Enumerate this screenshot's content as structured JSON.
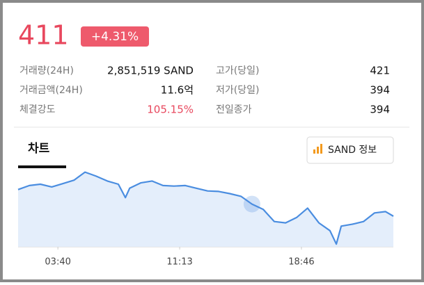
{
  "price": "411",
  "change": "+4.31%",
  "stats": [
    {
      "label": "거래량(24H)",
      "value": "2,851,519 SAND"
    },
    {
      "label": "고가(당일)",
      "value": "421"
    },
    {
      "label": "거래금액(24H)",
      "value": "11.6억"
    },
    {
      "label": "저가(당일)",
      "value": "394"
    },
    {
      "label": "체결강도",
      "value": "105.15%"
    },
    {
      "label": "전일종가",
      "value": "394"
    }
  ],
  "tab": "차트",
  "button": "SAND 정보",
  "chart_data": {
    "type": "line",
    "x": [
      72,
      114,
      155,
      197,
      238,
      280,
      321,
      362,
      404,
      445,
      471,
      487,
      528,
      570,
      611,
      652,
      694,
      735,
      777,
      818,
      859,
      901,
      942,
      984,
      1025,
      1067,
      1108,
      1149,
      1191,
      1232,
      1256,
      1274,
      1315,
      1357,
      1398,
      1439,
      1468
    ],
    "series": [
      {
        "color": "#4a8de0",
        "values": [
          414.3,
          415.8,
          416.3,
          415.3,
          416.5,
          417.8,
          420.8,
          419.3,
          417.5,
          416.3,
          411.3,
          414.8,
          416.8,
          417.5,
          415.8,
          415.6,
          415.8,
          414.8,
          413.8,
          413.6,
          412.8,
          411.8,
          408.9,
          406.9,
          402.4,
          401.9,
          403.9,
          407.4,
          401.9,
          399,
          394,
          400.7,
          401.4,
          402.4,
          405.6,
          406.1,
          404.4
        ]
      }
    ],
    "xlim": [
      72,
      1468
    ],
    "ylim": [
      393,
      422
    ],
    "xticks": [
      {
        "value": 220,
        "label": "03:40"
      },
      {
        "value": 673,
        "label": "11:13"
      },
      {
        "value": 1126,
        "label": "18:46"
      }
    ]
  }
}
